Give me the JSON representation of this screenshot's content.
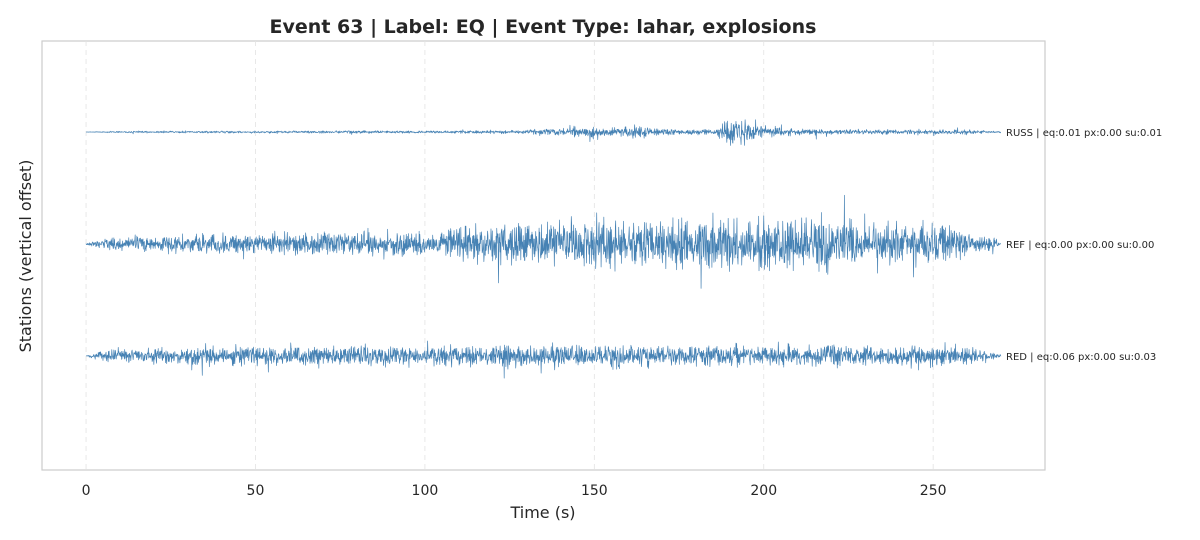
{
  "chart_data": {
    "type": "line",
    "title": "Event 63 | Label: EQ | Event Type: lahar, explosions",
    "xlabel": "Time (s)",
    "ylabel": "Stations (vertical offset)",
    "xlim": [
      -13,
      283
    ],
    "xticks": [
      0,
      50,
      100,
      150,
      200,
      250
    ],
    "grid": "vertical dashed",
    "line_color": "#4682b4",
    "series": [
      {
        "name": "RUSS",
        "label": "RUSS | eq:0.01 px:0.00 su:0.01",
        "envelope": [
          [
            0,
            0.5
          ],
          [
            10,
            2
          ],
          [
            50,
            2.5
          ],
          [
            110,
            3
          ],
          [
            130,
            4
          ],
          [
            143,
            10
          ],
          [
            148,
            16
          ],
          [
            152,
            10
          ],
          [
            157,
            8
          ],
          [
            162,
            18
          ],
          [
            167,
            8
          ],
          [
            185,
            6
          ],
          [
            190,
            26
          ],
          [
            192,
            42
          ],
          [
            196,
            28
          ],
          [
            200,
            14
          ],
          [
            210,
            6
          ],
          [
            260,
            5
          ],
          [
            270,
            1
          ]
        ]
      },
      {
        "name": "REF",
        "label": "REF | eq:0.00 px:0.00 su:0.00",
        "envelope": [
          [
            0,
            2
          ],
          [
            5,
            12
          ],
          [
            20,
            20
          ],
          [
            60,
            23
          ],
          [
            100,
            28
          ],
          [
            108,
            34
          ],
          [
            112,
            50
          ],
          [
            120,
            46
          ],
          [
            150,
            55
          ],
          [
            180,
            55
          ],
          [
            200,
            58
          ],
          [
            230,
            52
          ],
          [
            250,
            48
          ],
          [
            262,
            28
          ],
          [
            268,
            12
          ],
          [
            270,
            2
          ]
        ]
      },
      {
        "name": "RED",
        "label": "RED | eq:0.06 px:0.00 su:0.03",
        "envelope": [
          [
            0,
            2
          ],
          [
            5,
            12
          ],
          [
            30,
            20
          ],
          [
            100,
            22
          ],
          [
            150,
            23
          ],
          [
            200,
            24
          ],
          [
            250,
            22
          ],
          [
            262,
            16
          ],
          [
            268,
            8
          ],
          [
            270,
            2
          ]
        ]
      }
    ]
  }
}
